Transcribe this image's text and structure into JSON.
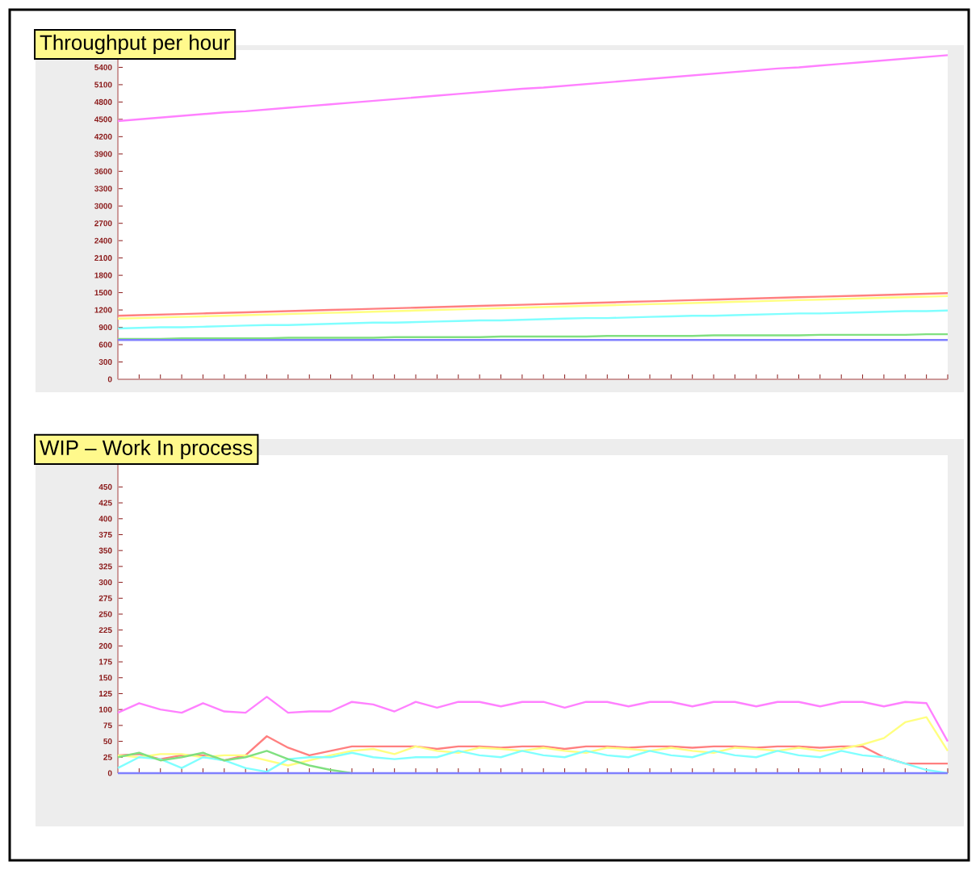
{
  "chart_data": [
    {
      "type": "line",
      "title": "Throughput per hour",
      "categories": [
        null,
        null,
        null,
        null,
        null,
        null,
        null,
        null,
        null,
        null,
        null,
        null,
        null,
        null,
        null,
        null,
        null,
        null,
        null,
        null,
        null,
        null,
        null,
        null,
        null,
        null,
        null,
        null,
        null,
        null,
        null,
        null,
        null,
        null,
        null,
        null,
        null,
        null,
        null,
        null
      ],
      "series": [
        {
          "color": "#ff80ff",
          "values": [
            4470,
            4500,
            4530,
            4560,
            4590,
            4620,
            4640,
            4670,
            4700,
            4730,
            4760,
            4790,
            4820,
            4850,
            4880,
            4910,
            4940,
            4970,
            5000,
            5030,
            5050,
            5080,
            5110,
            5140,
            5170,
            5200,
            5230,
            5260,
            5290,
            5320,
            5350,
            5380,
            5400,
            5430,
            5460,
            5490,
            5520,
            5550,
            5580,
            5610
          ]
        },
        {
          "color": "#ff8080",
          "values": [
            1100,
            1110,
            1120,
            1130,
            1140,
            1150,
            1160,
            1170,
            1180,
            1190,
            1200,
            1210,
            1220,
            1230,
            1240,
            1250,
            1260,
            1270,
            1280,
            1290,
            1300,
            1310,
            1320,
            1330,
            1340,
            1350,
            1360,
            1370,
            1380,
            1390,
            1400,
            1410,
            1420,
            1430,
            1440,
            1450,
            1460,
            1470,
            1480,
            1490
          ]
        },
        {
          "color": "#ffff80",
          "values": [
            1050,
            1060,
            1070,
            1080,
            1090,
            1100,
            1110,
            1120,
            1130,
            1140,
            1150,
            1160,
            1170,
            1180,
            1190,
            1200,
            1210,
            1220,
            1230,
            1240,
            1250,
            1260,
            1270,
            1280,
            1290,
            1300,
            1310,
            1320,
            1330,
            1340,
            1350,
            1360,
            1370,
            1380,
            1390,
            1400,
            1410,
            1420,
            1430,
            1440
          ]
        },
        {
          "color": "#80ffff",
          "values": [
            880,
            890,
            900,
            900,
            910,
            920,
            930,
            940,
            940,
            950,
            960,
            970,
            980,
            980,
            990,
            1000,
            1010,
            1020,
            1020,
            1030,
            1040,
            1050,
            1060,
            1060,
            1070,
            1080,
            1090,
            1100,
            1100,
            1110,
            1120,
            1130,
            1140,
            1140,
            1150,
            1160,
            1170,
            1180,
            1180,
            1190
          ]
        },
        {
          "color": "#80e080",
          "values": [
            700,
            700,
            700,
            710,
            710,
            710,
            710,
            710,
            720,
            720,
            720,
            720,
            720,
            730,
            730,
            730,
            730,
            730,
            740,
            740,
            740,
            740,
            740,
            750,
            750,
            750,
            750,
            750,
            760,
            760,
            760,
            760,
            760,
            770,
            770,
            770,
            770,
            770,
            780,
            780
          ]
        },
        {
          "color": "#8080ff",
          "values": [
            680,
            680,
            680,
            680,
            680,
            680,
            680,
            680,
            680,
            680,
            680,
            680,
            680,
            680,
            680,
            680,
            680,
            680,
            680,
            680,
            680,
            680,
            680,
            680,
            680,
            680,
            680,
            680,
            680,
            680,
            680,
            680,
            680,
            680,
            680,
            680,
            680,
            680,
            680,
            680
          ]
        }
      ],
      "ylim": [
        0,
        5700
      ],
      "yticks": [
        0,
        300,
        600,
        900,
        1200,
        1500,
        1800,
        2100,
        2400,
        2700,
        3000,
        3300,
        3600,
        3900,
        4200,
        4500,
        4800,
        5100,
        5400
      ],
      "tick_labels": "y"
    },
    {
      "type": "line",
      "title": "WIP – Work In process",
      "categories": [
        null,
        null,
        null,
        null,
        null,
        null,
        null,
        null,
        null,
        null,
        null,
        null,
        null,
        null,
        null,
        null,
        null,
        null,
        null,
        null,
        null,
        null,
        null,
        null,
        null,
        null,
        null,
        null,
        null,
        null,
        null,
        null,
        null,
        null,
        null,
        null,
        null,
        null,
        null,
        null
      ],
      "series": [
        {
          "color": "#ff80ff",
          "values": [
            95,
            110,
            100,
            95,
            110,
            97,
            95,
            120,
            95,
            97,
            97,
            112,
            108,
            97,
            112,
            103,
            112,
            112,
            105,
            112,
            112,
            103,
            112,
            112,
            105,
            112,
            112,
            105,
            112,
            112,
            105,
            112,
            112,
            105,
            112,
            112,
            105,
            112,
            110,
            50
          ]
        },
        {
          "color": "#ff8080",
          "values": [
            28,
            30,
            22,
            28,
            28,
            20,
            28,
            58,
            40,
            28,
            35,
            42,
            42,
            42,
            42,
            38,
            42,
            42,
            40,
            42,
            42,
            38,
            42,
            42,
            40,
            42,
            42,
            40,
            42,
            42,
            40,
            42,
            42,
            40,
            42,
            42,
            25,
            15,
            15,
            15
          ]
        },
        {
          "color": "#ffff80",
          "values": [
            28,
            25,
            30,
            30,
            25,
            28,
            28,
            20,
            12,
            20,
            28,
            35,
            38,
            30,
            42,
            35,
            32,
            40,
            38,
            35,
            40,
            35,
            32,
            40,
            38,
            35,
            40,
            35,
            32,
            40,
            38,
            35,
            40,
            35,
            38,
            45,
            55,
            80,
            88,
            35
          ]
        },
        {
          "color": "#80ffff",
          "values": [
            8,
            25,
            22,
            8,
            25,
            20,
            8,
            2,
            22,
            25,
            25,
            32,
            25,
            22,
            25,
            25,
            35,
            28,
            25,
            35,
            28,
            25,
            35,
            28,
            25,
            35,
            28,
            25,
            35,
            28,
            25,
            35,
            28,
            25,
            35,
            28,
            25,
            15,
            5,
            0
          ]
        },
        {
          "color": "#80e080",
          "values": [
            25,
            32,
            20,
            25,
            32,
            20,
            25,
            35,
            22,
            12,
            5,
            0,
            null,
            null,
            null,
            null,
            null,
            null,
            null,
            null,
            null,
            null,
            null,
            null,
            null,
            null,
            null,
            null,
            null,
            null,
            null,
            null,
            null,
            null,
            null,
            null,
            null,
            null,
            null,
            null
          ]
        },
        {
          "color": "#8080ff",
          "values": [
            0,
            0,
            0,
            0,
            0,
            0,
            0,
            0,
            0,
            0,
            0,
            0,
            0,
            0,
            0,
            0,
            0,
            0,
            0,
            0,
            0,
            0,
            0,
            0,
            0,
            0,
            0,
            0,
            0,
            0,
            0,
            0,
            0,
            0,
            0,
            0,
            0,
            0,
            0,
            0
          ]
        }
      ],
      "ylim": [
        0,
        500
      ],
      "yticks": [
        0,
        25,
        50,
        75,
        100,
        125,
        150,
        175,
        200,
        225,
        250,
        275,
        300,
        325,
        350,
        375,
        400,
        425,
        450
      ],
      "tick_labels": "y"
    }
  ]
}
